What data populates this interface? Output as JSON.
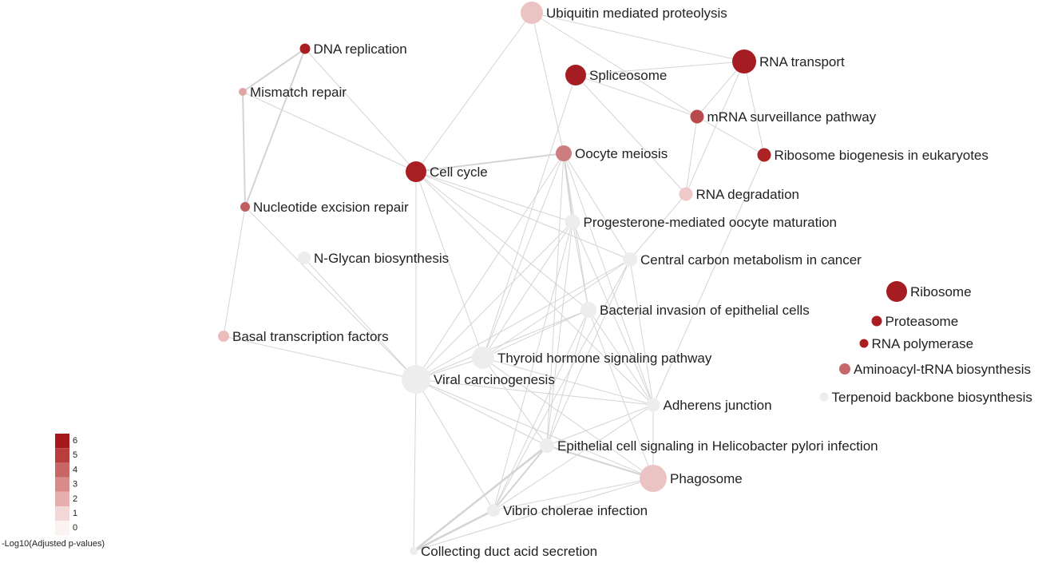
{
  "colors": {
    "edge": "#d4d4d4",
    "label": "#222222",
    "scale": [
      "#fdf2f2",
      "#f4d7d7",
      "#e8aeae",
      "#d98a8a",
      "#c86565",
      "#b83e3e",
      "#a5191c"
    ]
  },
  "legend": {
    "title": "-Log10(Adjusted p-values)",
    "ticks": [
      "6",
      "5",
      "4",
      "3",
      "2",
      "1",
      "0"
    ]
  },
  "nodes": [
    {
      "id": "ubiquitin",
      "label": "Ubiquitin mediated proteolysis",
      "color": "#ebc3c3"
    },
    {
      "id": "dna-rep",
      "label": "DNA replication",
      "color": "#a91e22"
    },
    {
      "id": "rna-transport",
      "label": "RNA transport",
      "color": "#a51c22"
    },
    {
      "id": "spliceosome",
      "label": "Spliceosome",
      "color": "#a51c22"
    },
    {
      "id": "mismatch",
      "label": "Mismatch repair",
      "color": "#dfa6a6"
    },
    {
      "id": "mrna-surv",
      "label": "mRNA surveillance pathway",
      "color": "#b84a4d"
    },
    {
      "id": "oocyte-meiosis",
      "label": "Oocyte meiosis",
      "color": "#cc7d7f"
    },
    {
      "id": "ribo-biogen",
      "label": "Ribosome biogenesis in eukaryotes",
      "color": "#ac2326"
    },
    {
      "id": "cell-cycle",
      "label": "Cell cycle",
      "color": "#a91e22"
    },
    {
      "id": "rna-degradation",
      "label": "RNA degradation",
      "color": "#efc9c9"
    },
    {
      "id": "nucleotide-exc",
      "label": "Nucleotide excision repair",
      "color": "#c05d5f"
    },
    {
      "id": "progesterone",
      "label": "Progesterone-mediated oocyte maturation",
      "color": "#ededed"
    },
    {
      "id": "n-glycan",
      "label": "N-Glycan biosynthesis",
      "color": "#ededed"
    },
    {
      "id": "central-carbon",
      "label": "Central carbon metabolism in cancer",
      "color": "#ededed"
    },
    {
      "id": "ribosome",
      "label": "Ribosome",
      "color": "#a51c22"
    },
    {
      "id": "bacterial-inv",
      "label": "Bacterial invasion of epithelial cells",
      "color": "#ededed"
    },
    {
      "id": "proteasome",
      "label": "Proteasome",
      "color": "#a91e22"
    },
    {
      "id": "basal-tf",
      "label": "Basal transcription factors",
      "color": "#ebbcbc"
    },
    {
      "id": "rna-pol",
      "label": "RNA polymerase",
      "color": "#a91e22"
    },
    {
      "id": "thyroid",
      "label": "Thyroid hormone signaling pathway",
      "color": "#ededed"
    },
    {
      "id": "aminoacyl",
      "label": "Aminoacyl-tRNA biosynthesis",
      "color": "#c4686a"
    },
    {
      "id": "viral-carc",
      "label": "Viral carcinogenesis",
      "color": "#ededed"
    },
    {
      "id": "terpenoid",
      "label": "Terpenoid backbone biosynthesis",
      "color": "#ededed"
    },
    {
      "id": "adherens",
      "label": "Adherens junction",
      "color": "#ededed"
    },
    {
      "id": "epithelial-hp",
      "label": "Epithelial cell signaling in Helicobacter pylori infection",
      "color": "#ededed"
    },
    {
      "id": "phagosome",
      "label": "Phagosome",
      "color": "#ebc3c3"
    },
    {
      "id": "vibrio",
      "label": "Vibrio cholerae infection",
      "color": "#ededed"
    },
    {
      "id": "collecting-duct",
      "label": "Collecting duct acid secretion",
      "color": "#ededed"
    }
  ],
  "edges": [
    [
      "ubiquitin",
      "rna-transport"
    ],
    [
      "ubiquitin",
      "cell-cycle"
    ],
    [
      "ubiquitin",
      "mrna-surv"
    ],
    [
      "ubiquitin",
      "oocyte-meiosis"
    ],
    [
      "dna-rep",
      "mismatch"
    ],
    [
      "dna-rep",
      "nucleotide-exc"
    ],
    [
      "dna-rep",
      "cell-cycle"
    ],
    [
      "mismatch",
      "nucleotide-exc"
    ],
    [
      "mismatch",
      "cell-cycle"
    ],
    [
      "nucleotide-exc",
      "basal-tf"
    ],
    [
      "nucleotide-exc",
      "viral-carc"
    ],
    [
      "rna-transport",
      "spliceosome"
    ],
    [
      "rna-transport",
      "mrna-surv"
    ],
    [
      "rna-transport",
      "ribo-biogen"
    ],
    [
      "rna-transport",
      "rna-degradation"
    ],
    [
      "spliceosome",
      "mrna-surv"
    ],
    [
      "spliceosome",
      "rna-degradation"
    ],
    [
      "spliceosome",
      "thyroid"
    ],
    [
      "mrna-surv",
      "ribo-biogen"
    ],
    [
      "mrna-surv",
      "rna-degradation"
    ],
    [
      "ribo-biogen",
      "adherens"
    ],
    [
      "rna-degradation",
      "central-carbon"
    ],
    [
      "cell-cycle",
      "oocyte-meiosis"
    ],
    [
      "cell-cycle",
      "progesterone"
    ],
    [
      "cell-cycle",
      "central-carbon"
    ],
    [
      "cell-cycle",
      "bacterial-inv"
    ],
    [
      "cell-cycle",
      "viral-carc"
    ],
    [
      "cell-cycle",
      "thyroid"
    ],
    [
      "cell-cycle",
      "adherens"
    ],
    [
      "oocyte-meiosis",
      "progesterone"
    ],
    [
      "oocyte-meiosis",
      "central-carbon"
    ],
    [
      "oocyte-meiosis",
      "viral-carc"
    ],
    [
      "oocyte-meiosis",
      "thyroid"
    ],
    [
      "oocyte-meiosis",
      "bacterial-inv"
    ],
    [
      "oocyte-meiosis",
      "adherens"
    ],
    [
      "oocyte-meiosis",
      "epithelial-hp"
    ],
    [
      "progesterone",
      "viral-carc"
    ],
    [
      "progesterone",
      "thyroid"
    ],
    [
      "progesterone",
      "bacterial-inv"
    ],
    [
      "progesterone",
      "adherens"
    ],
    [
      "progesterone",
      "epithelial-hp"
    ],
    [
      "progesterone",
      "vibrio"
    ],
    [
      "n-glycan",
      "viral-carc"
    ],
    [
      "central-carbon",
      "viral-carc"
    ],
    [
      "central-carbon",
      "thyroid"
    ],
    [
      "central-carbon",
      "adherens"
    ],
    [
      "central-carbon",
      "epithelial-hp"
    ],
    [
      "central-carbon",
      "vibrio"
    ],
    [
      "bacterial-inv",
      "viral-carc"
    ],
    [
      "bacterial-inv",
      "thyroid"
    ],
    [
      "bacterial-inv",
      "adherens"
    ],
    [
      "bacterial-inv",
      "epithelial-hp"
    ],
    [
      "bacterial-inv",
      "phagosome"
    ],
    [
      "bacterial-inv",
      "vibrio"
    ],
    [
      "basal-tf",
      "viral-carc"
    ],
    [
      "thyroid",
      "viral-carc"
    ],
    [
      "thyroid",
      "adherens"
    ],
    [
      "thyroid",
      "epithelial-hp"
    ],
    [
      "thyroid",
      "phagosome"
    ],
    [
      "viral-carc",
      "adherens"
    ],
    [
      "viral-carc",
      "epithelial-hp"
    ],
    [
      "viral-carc",
      "vibrio"
    ],
    [
      "viral-carc",
      "collecting-duct"
    ],
    [
      "viral-carc",
      "phagosome"
    ],
    [
      "adherens",
      "epithelial-hp"
    ],
    [
      "adherens",
      "vibrio"
    ],
    [
      "adherens",
      "phagosome"
    ],
    [
      "epithelial-hp",
      "phagosome"
    ],
    [
      "epithelial-hp",
      "vibrio"
    ],
    [
      "epithelial-hp",
      "collecting-duct"
    ],
    [
      "phagosome",
      "vibrio"
    ],
    [
      "phagosome",
      "collecting-duct"
    ],
    [
      "vibrio",
      "collecting-duct"
    ]
  ]
}
